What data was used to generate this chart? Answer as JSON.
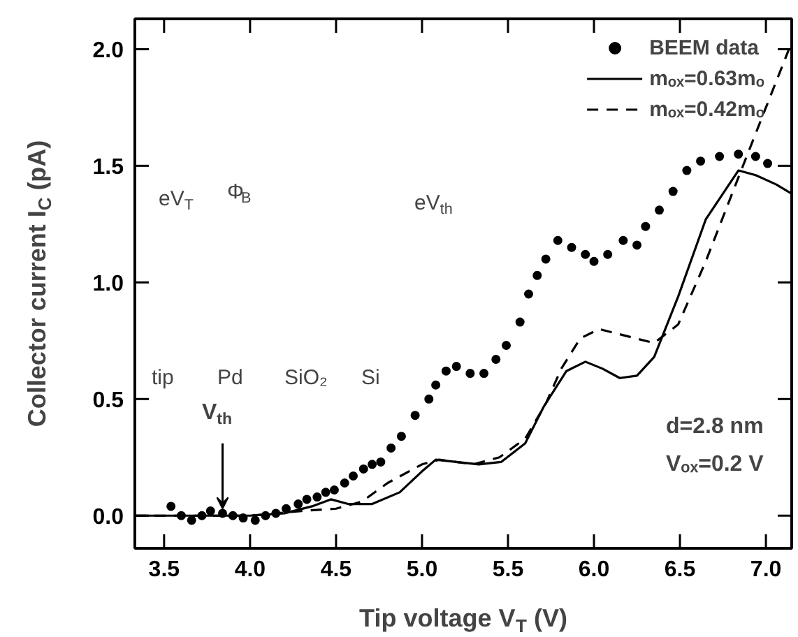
{
  "chart_data": {
    "type": "scatter",
    "xlabel": "Tip voltage V$_{T}$ (V)",
    "ylabel": "Collector current I$_{C}$ (pA)",
    "xlim": [
      3.33,
      7.15
    ],
    "ylim": [
      -0.14,
      2.13
    ],
    "xticks": [
      {
        "value": 3.5,
        "label": "3.5"
      },
      {
        "value": 4,
        "label": "4.0"
      },
      {
        "value": 4.5,
        "label": "4.5"
      },
      {
        "value": 5,
        "label": "5.0"
      },
      {
        "value": 5.5,
        "label": "5.5"
      },
      {
        "value": 6,
        "label": "6.0"
      },
      {
        "value": 6.5,
        "label": "6.5"
      },
      {
        "value": 7,
        "label": "7.0"
      }
    ],
    "yticks": [
      {
        "value": 0,
        "label": "0.0"
      },
      {
        "value": 0.5,
        "label": "0.5"
      },
      {
        "value": 1,
        "label": "1.0"
      },
      {
        "value": 1.5,
        "label": "1.5"
      },
      {
        "value": 2,
        "label": "2.0"
      }
    ],
    "grid": false,
    "legend": "top right",
    "series": [
      {
        "name": "BEEM data",
        "marker": "circle",
        "color": "#000000",
        "x": [
          3.54,
          3.6,
          3.66,
          3.72,
          3.77,
          3.84,
          3.9,
          3.96,
          4.03,
          4.09,
          4.15,
          4.21,
          4.28,
          4.33,
          4.39,
          4.44,
          4.49,
          4.55,
          4.6,
          4.66,
          4.71,
          4.76,
          4.82,
          4.88,
          4.96,
          5.04,
          5.08,
          5.14,
          5.2,
          5.28,
          5.36,
          5.43,
          5.49,
          5.57,
          5.62,
          5.67,
          5.72,
          5.79,
          5.87,
          5.95,
          6.0,
          6.08,
          6.17,
          6.25,
          6.3,
          6.38,
          6.46,
          6.54,
          6.62,
          6.73,
          6.84,
          6.94,
          7.01
        ],
        "values": [
          0.04,
          0.0,
          -0.02,
          0.0,
          0.02,
          0.01,
          0.0,
          -0.01,
          -0.02,
          0.0,
          0.01,
          0.03,
          0.05,
          0.07,
          0.08,
          0.1,
          0.11,
          0.14,
          0.17,
          0.2,
          0.22,
          0.23,
          0.29,
          0.34,
          0.43,
          0.5,
          0.56,
          0.62,
          0.64,
          0.61,
          0.61,
          0.67,
          0.73,
          0.83,
          0.95,
          1.03,
          1.1,
          1.18,
          1.15,
          1.12,
          1.09,
          1.12,
          1.18,
          1.16,
          1.24,
          1.31,
          1.39,
          1.48,
          1.52,
          1.54,
          1.55,
          1.54,
          1.51
        ]
      },
      {
        "name": "mₒₓ=0.63mₒ",
        "type": "line",
        "line_style": "solid",
        "color": "#000000",
        "x": [
          3.33,
          4.0,
          4.2,
          4.36,
          4.47,
          4.57,
          4.71,
          4.87,
          5.0,
          5.08,
          5.2,
          5.33,
          5.46,
          5.6,
          5.71,
          5.84,
          5.95,
          6.05,
          6.15,
          6.25,
          6.35,
          6.49,
          6.65,
          6.84,
          6.94,
          7.06,
          7.15
        ],
        "values": [
          0.0,
          0.0,
          0.01,
          0.04,
          0.07,
          0.05,
          0.05,
          0.1,
          0.19,
          0.24,
          0.23,
          0.22,
          0.23,
          0.31,
          0.47,
          0.62,
          0.66,
          0.63,
          0.59,
          0.6,
          0.68,
          0.94,
          1.27,
          1.48,
          1.46,
          1.42,
          1.38
        ]
      },
      {
        "name": "mₒₓ=0.42mₒ",
        "type": "line",
        "line_style": "dashed",
        "color": "#000000",
        "x": [
          3.33,
          4.0,
          4.3,
          4.5,
          4.65,
          4.8,
          5.0,
          5.1,
          5.3,
          5.45,
          5.6,
          5.72,
          5.81,
          5.92,
          6.03,
          6.19,
          6.35,
          6.49,
          6.65,
          6.84,
          7.0,
          7.15
        ],
        "values": [
          0.0,
          0.0,
          0.02,
          0.03,
          0.06,
          0.14,
          0.22,
          0.24,
          0.22,
          0.25,
          0.33,
          0.48,
          0.63,
          0.76,
          0.8,
          0.77,
          0.74,
          0.82,
          1.09,
          1.45,
          1.75,
          2.03
        ]
      }
    ],
    "annotations": [
      {
        "text": "V$_{th}$",
        "x": 3.84,
        "y": 0.01
      },
      "d=2.8 nm",
      "Vₒₓ=0.2 V",
      "tip",
      "Pd",
      "SiO₂",
      "Si",
      "eV$_{T}$",
      "Φ$_{B}$",
      "eV$_{th}$"
    ]
  }
}
